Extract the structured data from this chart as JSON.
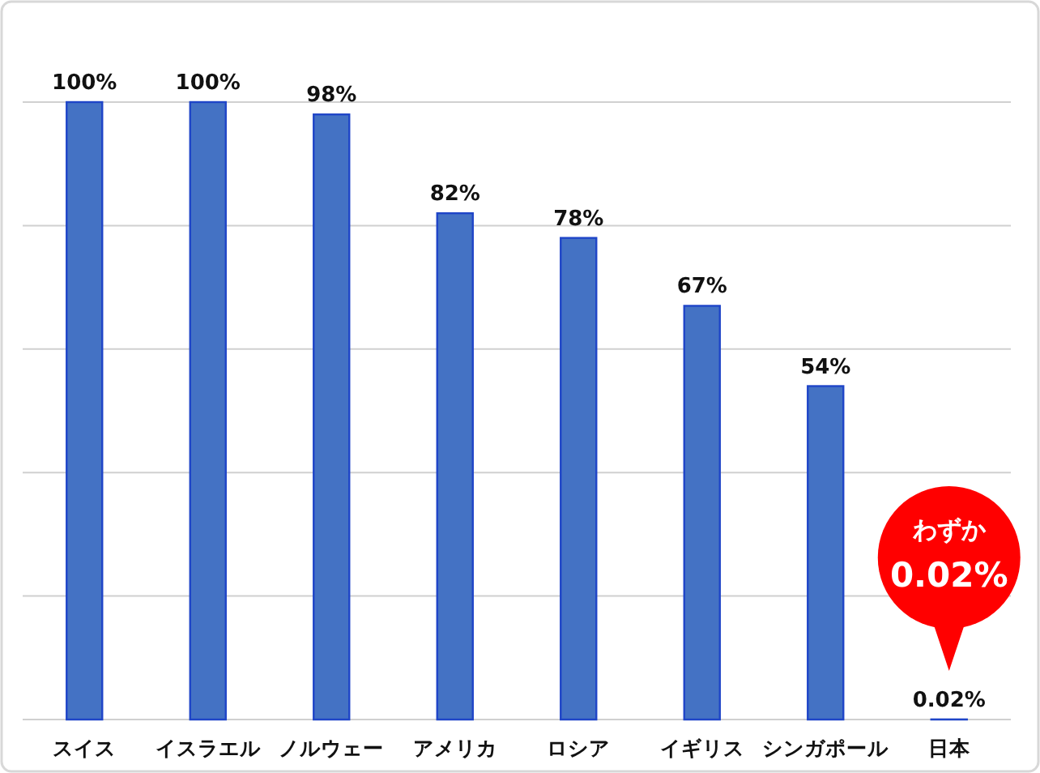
{
  "chart_data": {
    "type": "bar",
    "categories": [
      "スイス",
      "イスラエル",
      "ノルウェー",
      "アメリカ",
      "ロシア",
      "イギリス",
      "シンガポール",
      "日本"
    ],
    "values": [
      100,
      100,
      98,
      82,
      78,
      67,
      54,
      0.02
    ],
    "value_labels": [
      "100%",
      "100%",
      "98%",
      "82%",
      "78%",
      "67%",
      "54%",
      "0.02%"
    ],
    "color": "#4472c4",
    "ylim": [
      0,
      100
    ],
    "yticks": [
      {
        "value": 0,
        "label": null
      },
      {
        "value": 20,
        "label": null
      },
      {
        "value": 40,
        "label": null
      },
      {
        "value": 60,
        "label": null
      },
      {
        "value": 80,
        "label": null
      },
      {
        "value": 100,
        "label": null
      }
    ],
    "tick_labels": "x",
    "grid": "y",
    "annotations": [
      "わずか\n0.02%"
    ]
  }
}
